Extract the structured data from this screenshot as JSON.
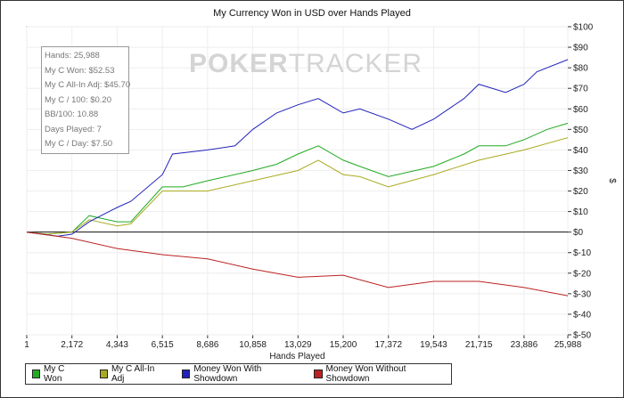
{
  "chart_data": {
    "type": "line",
    "title": "My Currency Won in USD over Hands Played",
    "xlabel": "Hands Played",
    "ylabel": "$",
    "xlim": [
      1,
      25988
    ],
    "ylim": [
      -50,
      100
    ],
    "x_ticks": [
      "1",
      "2,172",
      "4,343",
      "6,515",
      "8,686",
      "10,858",
      "13,029",
      "15,200",
      "17,372",
      "19,543",
      "21,715",
      "23,886",
      "25,988"
    ],
    "x_tick_values": [
      1,
      2172,
      4343,
      6515,
      8686,
      10858,
      13029,
      15200,
      17372,
      19543,
      21715,
      23886,
      25988
    ],
    "y_ticks": [
      "$100",
      "$90",
      "$80",
      "$70",
      "$60",
      "$50",
      "$40",
      "$30",
      "$20",
      "$10",
      "$0",
      "$-10",
      "$-20",
      "$-30",
      "$-40",
      "$-50"
    ],
    "y_tick_values": [
      100,
      90,
      80,
      70,
      60,
      50,
      40,
      30,
      20,
      10,
      0,
      -10,
      -20,
      -30,
      -40,
      -50
    ],
    "grid": true,
    "legend_placement": "bottom",
    "series": [
      {
        "name": "My C Won",
        "color": "#22aa22",
        "x": [
          1,
          1000,
          2172,
          3000,
          4343,
          5000,
          6515,
          7500,
          8686,
          10858,
          12000,
          13029,
          14000,
          15200,
          16000,
          17372,
          19543,
          21000,
          21715,
          23000,
          23886,
          25000,
          25988
        ],
        "y": [
          0,
          -1,
          0,
          8,
          5,
          5,
          22,
          22,
          25,
          30,
          33,
          38,
          42,
          35,
          32,
          27,
          32,
          38,
          42,
          42,
          45,
          50,
          53
        ]
      },
      {
        "name": "My C All-In Adj",
        "color": "#aaaa22",
        "x": [
          1,
          1000,
          2172,
          3000,
          4343,
          5000,
          6515,
          8686,
          10858,
          13029,
          14000,
          15200,
          16000,
          17372,
          19543,
          21715,
          23886,
          25988
        ],
        "y": [
          0,
          -1,
          0,
          6,
          3,
          4,
          20,
          20,
          25,
          30,
          35,
          28,
          27,
          22,
          28,
          35,
          40,
          46
        ]
      },
      {
        "name": "Money Won With Showdown",
        "color": "#2222bb",
        "x": [
          1,
          1500,
          2172,
          3000,
          4343,
          5000,
          6515,
          7000,
          8686,
          10000,
          10858,
          12000,
          13029,
          14000,
          15200,
          16000,
          17372,
          18500,
          19543,
          21000,
          21715,
          23000,
          23886,
          24500,
          25988
        ],
        "y": [
          0,
          -2,
          -1,
          5,
          12,
          15,
          28,
          38,
          40,
          42,
          50,
          58,
          62,
          65,
          58,
          60,
          55,
          50,
          55,
          65,
          72,
          68,
          72,
          78,
          84
        ]
      },
      {
        "name": "Money Won Without Showdown",
        "color": "#bb2222",
        "x": [
          1,
          2172,
          4343,
          6515,
          8686,
          10858,
          13029,
          15200,
          17372,
          19543,
          21715,
          23886,
          25988
        ],
        "y": [
          0,
          -3,
          -8,
          -11,
          -13,
          -18,
          -22,
          -21,
          -27,
          -24,
          -24,
          -27,
          -31
        ]
      }
    ]
  },
  "stats": [
    "Hands: 25,988",
    "My C Won: $52.53",
    "My C All-In Adj: $45.70",
    "My C / 100: $0.20",
    "BB/100: 10.88",
    "Days Played: 7",
    "My C / Day: $7.50"
  ],
  "watermark": {
    "a": "POKER",
    "b": "TRACKER"
  }
}
